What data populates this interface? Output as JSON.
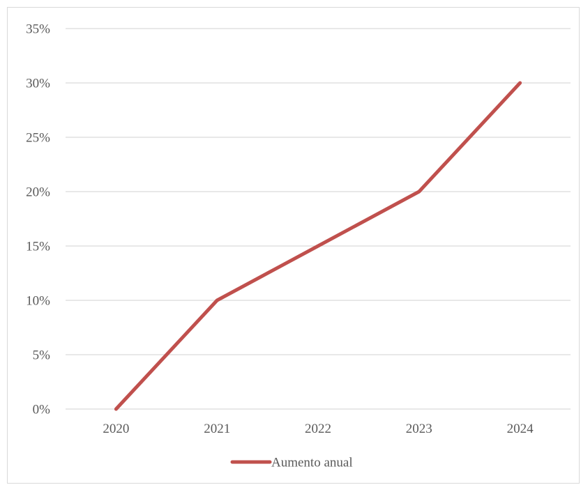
{
  "chart_data": {
    "type": "line",
    "categories": [
      "2020",
      "2021",
      "2022",
      "2023",
      "2024"
    ],
    "series": [
      {
        "name": "Aumento anual",
        "values": [
          0,
          10,
          15,
          20,
          30
        ],
        "color": "#c0504d"
      }
    ],
    "y_ticks": [
      "0%",
      "5%",
      "10%",
      "15%",
      "20%",
      "25%",
      "30%",
      "35%"
    ],
    "ylim": [
      0,
      35
    ],
    "y_unit": "%",
    "grid": true,
    "legend_position": "bottom",
    "title": "",
    "xlabel": "",
    "ylabel": ""
  }
}
